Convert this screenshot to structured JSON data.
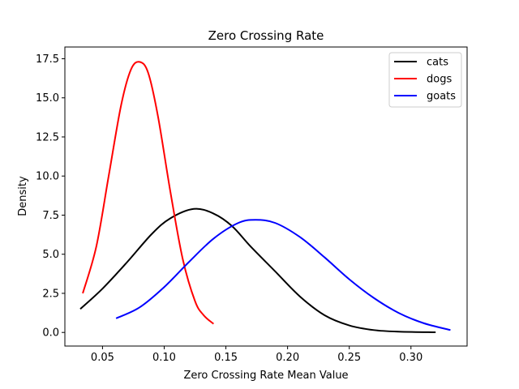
{
  "chart_data": {
    "type": "line",
    "title": "Zero Crossing Rate",
    "xlabel": "Zero Crossing Rate Mean Value",
    "ylabel": "Density",
    "xlim": [
      0.0195,
      0.3455
    ],
    "ylim": [
      -0.87,
      18.25
    ],
    "xticks": [
      0.05,
      0.1,
      0.15,
      0.2,
      0.25,
      0.3
    ],
    "xtick_labels": [
      "0.05",
      "0.10",
      "0.15",
      "0.20",
      "0.25",
      "0.30"
    ],
    "yticks": [
      0.0,
      2.5,
      5.0,
      7.5,
      10.0,
      12.5,
      15.0,
      17.5
    ],
    "ytick_labels": [
      "0.0",
      "2.5",
      "5.0",
      "7.5",
      "10.0",
      "12.5",
      "15.0",
      "17.5"
    ],
    "grid": false,
    "legend_position": "top-right",
    "series": [
      {
        "name": "cats",
        "color": "#000000",
        "x": [
          0.032,
          0.05,
          0.07,
          0.09,
          0.105,
          0.124,
          0.14,
          0.155,
          0.17,
          0.19,
          0.21,
          0.23,
          0.25,
          0.27,
          0.29,
          0.32
        ],
        "y": [
          1.5,
          2.8,
          4.5,
          6.3,
          7.3,
          7.9,
          7.6,
          6.8,
          5.5,
          3.9,
          2.3,
          1.1,
          0.45,
          0.15,
          0.05,
          0.01
        ]
      },
      {
        "name": "dogs",
        "color": "#ff0000",
        "x": [
          0.034,
          0.045,
          0.055,
          0.065,
          0.073,
          0.08,
          0.087,
          0.095,
          0.105,
          0.115,
          0.125,
          0.132,
          0.14
        ],
        "y": [
          2.5,
          5.5,
          10.0,
          14.5,
          16.8,
          17.3,
          16.6,
          13.8,
          9.0,
          4.7,
          2.0,
          1.1,
          0.55
        ]
      },
      {
        "name": "goats",
        "color": "#0000ff",
        "x": [
          0.061,
          0.08,
          0.1,
          0.12,
          0.14,
          0.16,
          0.174,
          0.19,
          0.21,
          0.23,
          0.25,
          0.27,
          0.29,
          0.31,
          0.332
        ],
        "y": [
          0.9,
          1.6,
          2.9,
          4.5,
          6.0,
          7.0,
          7.2,
          7.0,
          6.1,
          4.8,
          3.4,
          2.2,
          1.25,
          0.6,
          0.15
        ]
      }
    ]
  }
}
